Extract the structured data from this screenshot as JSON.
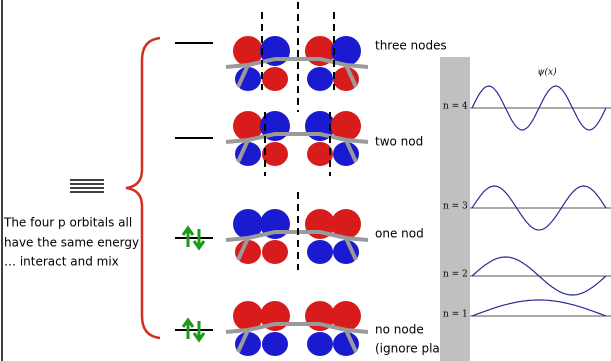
{
  "orbitals": [
    {
      "label": "three nodes"
    },
    {
      "label": "two nod"
    },
    {
      "label": "one nod"
    },
    {
      "label": "no node",
      "note": "(ignore plane)"
    }
  ],
  "description": [
    "The four p orbitals all",
    "have the same energy",
    "… interact and mix"
  ],
  "box": {
    "title": "ψ(x)",
    "levels": [
      "n = 4",
      "n = 3",
      "n = 2",
      "n = 1"
    ]
  }
}
